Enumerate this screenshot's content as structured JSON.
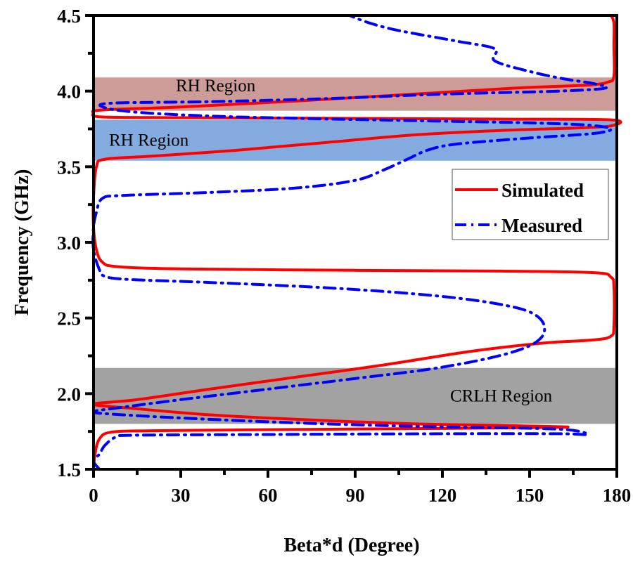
{
  "chart_data": {
    "type": "line",
    "title": "",
    "xlabel": "Beta*d (Degree)",
    "ylabel": "Frequency (GHz)",
    "xlim": [
      0,
      180
    ],
    "ylim": [
      1.5,
      4.5
    ],
    "xticks": [
      "0",
      "30",
      "60",
      "90",
      "120",
      "150",
      "180"
    ],
    "xtick_values": [
      0,
      30,
      60,
      90,
      120,
      150,
      180
    ],
    "yticks": [
      "1.5",
      "2.0",
      "2.5",
      "3.0",
      "3.5",
      "4.0",
      "4.5"
    ],
    "ytick_values": [
      1.5,
      2.0,
      2.5,
      3.0,
      3.5,
      4.0,
      4.5
    ],
    "grid": false,
    "legend": {
      "position": "center-right",
      "entries": [
        "Simulated",
        "Measured"
      ]
    },
    "regions": [
      {
        "label": "RH Region",
        "y_range": [
          3.87,
          4.09
        ],
        "color": "#b8706c",
        "opacity": 0.7
      },
      {
        "label": "RH Region",
        "y_range": [
          3.54,
          3.81
        ],
        "color": "#5b8fd6",
        "opacity": 0.75
      },
      {
        "label": "CRLH Region",
        "y_range": [
          1.8,
          2.17
        ],
        "color": "#7a7a7a",
        "opacity": 0.7
      }
    ],
    "series": [
      {
        "name": "Simulated",
        "color": "#ff0000",
        "style": "solid",
        "points": [
          [
            0,
            1.5
          ],
          [
            0.5,
            1.6
          ],
          [
            2,
            1.7
          ],
          [
            6,
            1.745
          ],
          [
            20,
            1.755
          ],
          [
            60,
            1.762
          ],
          [
            120,
            1.77
          ],
          [
            150,
            1.775
          ],
          [
            163,
            1.78
          ],
          [
            140,
            1.79
          ],
          [
            110,
            1.8
          ],
          [
            70,
            1.83
          ],
          [
            40,
            1.86
          ],
          [
            15,
            1.9
          ],
          [
            0,
            1.93
          ],
          [
            15,
            1.96
          ],
          [
            40,
            2.03
          ],
          [
            70,
            2.11
          ],
          [
            100,
            2.19
          ],
          [
            130,
            2.28
          ],
          [
            155,
            2.335
          ],
          [
            172,
            2.355
          ],
          [
            178,
            2.38
          ],
          [
            179,
            2.45
          ],
          [
            179,
            2.7
          ],
          [
            178,
            2.77
          ],
          [
            172,
            2.8
          ],
          [
            140,
            2.81
          ],
          [
            90,
            2.815
          ],
          [
            30,
            2.825
          ],
          [
            8,
            2.84
          ],
          [
            3,
            2.87
          ],
          [
            1,
            2.95
          ],
          [
            0,
            3.1
          ],
          [
            0,
            3.3
          ],
          [
            1,
            3.5
          ],
          [
            4,
            3.55
          ],
          [
            20,
            3.57
          ],
          [
            50,
            3.61
          ],
          [
            80,
            3.66
          ],
          [
            110,
            3.71
          ],
          [
            140,
            3.74
          ],
          [
            165,
            3.755
          ],
          [
            178,
            3.77
          ],
          [
            178,
            3.81
          ],
          [
            140,
            3.815
          ],
          [
            80,
            3.82
          ],
          [
            20,
            3.825
          ],
          [
            2,
            3.83
          ],
          [
            0,
            3.855
          ],
          [
            3,
            3.875
          ],
          [
            30,
            3.895
          ],
          [
            70,
            3.935
          ],
          [
            110,
            3.98
          ],
          [
            145,
            4.02
          ],
          [
            170,
            4.04
          ],
          [
            177,
            4.06
          ],
          [
            179,
            4.1
          ],
          [
            179,
            4.3
          ],
          [
            179,
            4.45
          ],
          [
            178,
            4.5
          ]
        ]
      },
      {
        "name": "Measured",
        "color": "#0000ff",
        "style": "dashdot",
        "points": [
          [
            2,
            1.5
          ],
          [
            0,
            1.555
          ],
          [
            2,
            1.6
          ],
          [
            4,
            1.66
          ],
          [
            8,
            1.715
          ],
          [
            15,
            1.725
          ],
          [
            60,
            1.73
          ],
          [
            120,
            1.735
          ],
          [
            160,
            1.735
          ],
          [
            170,
            1.73
          ],
          [
            160,
            1.765
          ],
          [
            120,
            1.78
          ],
          [
            80,
            1.8
          ],
          [
            40,
            1.83
          ],
          [
            10,
            1.86
          ],
          [
            0,
            1.88
          ],
          [
            10,
            1.91
          ],
          [
            30,
            1.96
          ],
          [
            60,
            2.03
          ],
          [
            90,
            2.1
          ],
          [
            115,
            2.16
          ],
          [
            135,
            2.23
          ],
          [
            148,
            2.3
          ],
          [
            154,
            2.37
          ],
          [
            155,
            2.45
          ],
          [
            152,
            2.52
          ],
          [
            145,
            2.57
          ],
          [
            130,
            2.62
          ],
          [
            110,
            2.66
          ],
          [
            80,
            2.7
          ],
          [
            40,
            2.735
          ],
          [
            12,
            2.755
          ],
          [
            4,
            2.775
          ],
          [
            2,
            2.82
          ],
          [
            0,
            2.95
          ],
          [
            0,
            3.1
          ],
          [
            1,
            3.2
          ],
          [
            3,
            3.29
          ],
          [
            10,
            3.31
          ],
          [
            40,
            3.33
          ],
          [
            70,
            3.36
          ],
          [
            90,
            3.41
          ],
          [
            100,
            3.48
          ],
          [
            108,
            3.55
          ],
          [
            115,
            3.61
          ],
          [
            125,
            3.65
          ],
          [
            150,
            3.69
          ],
          [
            172,
            3.72
          ],
          [
            178,
            3.75
          ],
          [
            170,
            3.775
          ],
          [
            150,
            3.79
          ],
          [
            110,
            3.805
          ],
          [
            70,
            3.82
          ],
          [
            40,
            3.835
          ],
          [
            15,
            3.86
          ],
          [
            4,
            3.89
          ],
          [
            6,
            3.92
          ],
          [
            40,
            3.93
          ],
          [
            80,
            3.95
          ],
          [
            120,
            3.98
          ],
          [
            160,
            4.0
          ],
          [
            176,
            4.02
          ],
          [
            172,
            4.05
          ],
          [
            162,
            4.08
          ],
          [
            150,
            4.13
          ],
          [
            138,
            4.2
          ],
          [
            138,
            4.28
          ],
          [
            125,
            4.33
          ],
          [
            105,
            4.4
          ],
          [
            95,
            4.45
          ],
          [
            88,
            4.5
          ]
        ]
      }
    ]
  }
}
